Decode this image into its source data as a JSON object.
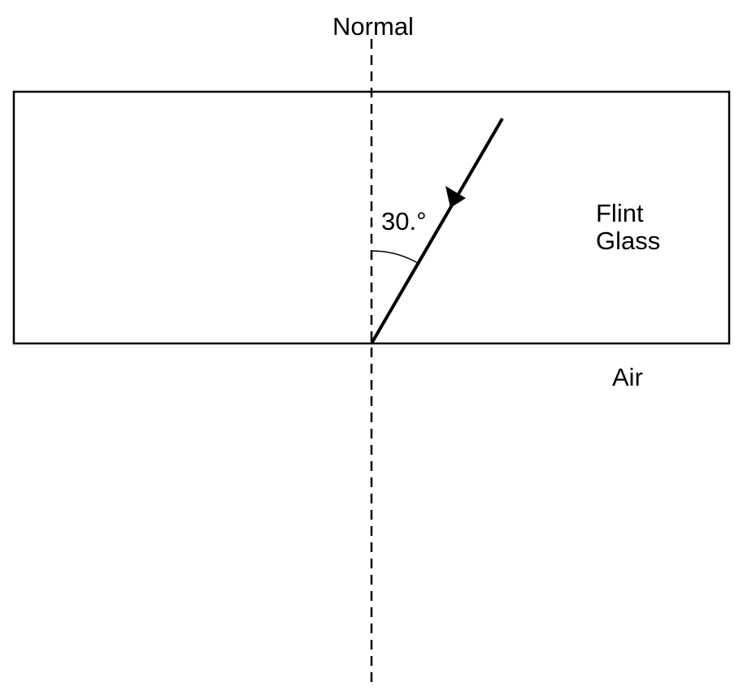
{
  "labels": {
    "normal": "Normal",
    "angle": "30.°",
    "material_line1": "Flint",
    "material_line2": "Glass",
    "outside_medium": "Air"
  },
  "colors": {
    "stroke": "#000000",
    "background": "#ffffff"
  }
}
